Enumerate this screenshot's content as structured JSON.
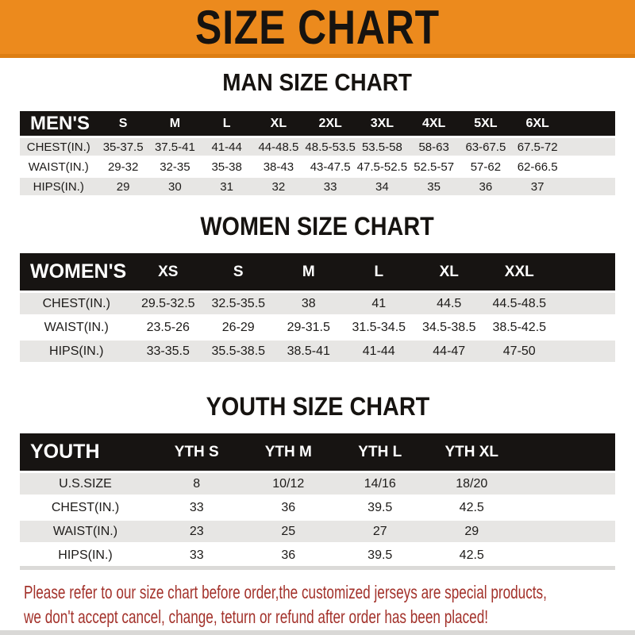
{
  "banner": {
    "title": "SIZE CHART"
  },
  "sections": [
    {
      "id": "men",
      "heading": "MAN SIZE CHART",
      "table": {
        "header_label": "MEN'S",
        "columns": [
          "S",
          "M",
          "L",
          "XL",
          "2XL",
          "3XL",
          "4XL",
          "5XL",
          "6XL"
        ],
        "rows": [
          {
            "label": "CHEST(IN.)",
            "values": [
              "35-37.5",
              "37.5-41",
              "41-44",
              "44-48.5",
              "48.5-53.5",
              "53.5-58",
              "58-63",
              "63-67.5",
              "67.5-72"
            ]
          },
          {
            "label": "WAIST(IN.)",
            "values": [
              "29-32",
              "32-35",
              "35-38",
              "38-43",
              "43-47.5",
              "47.5-52.5",
              "52.5-57",
              "57-62",
              "62-66.5"
            ]
          },
          {
            "label": "HIPS(IN.)",
            "values": [
              "29",
              "30",
              "31",
              "32",
              "33",
              "34",
              "35",
              "36",
              "37"
            ]
          }
        ]
      }
    },
    {
      "id": "women",
      "heading": "WOMEN SIZE CHART",
      "table": {
        "header_label": "WOMEN'S",
        "columns": [
          "XS",
          "S",
          "M",
          "L",
          "XL",
          "XXL"
        ],
        "rows": [
          {
            "label": "CHEST(IN.)",
            "values": [
              "29.5-32.5",
              "32.5-35.5",
              "38",
              "41",
              "44.5",
              "44.5-48.5"
            ]
          },
          {
            "label": "WAIST(IN.)",
            "values": [
              "23.5-26",
              "26-29",
              "29-31.5",
              "31.5-34.5",
              "34.5-38.5",
              "38.5-42.5"
            ]
          },
          {
            "label": "HIPS(IN.)",
            "values": [
              "33-35.5",
              "35.5-38.5",
              "38.5-41",
              "41-44",
              "44-47",
              "47-50"
            ]
          }
        ]
      }
    },
    {
      "id": "youth",
      "heading": "YOUTH SIZE CHART",
      "table": {
        "header_label": "YOUTH",
        "columns": [
          "YTH S",
          "YTH M",
          "YTH L",
          "YTH XL"
        ],
        "rows": [
          {
            "label": "U.S.SIZE",
            "values": [
              "8",
              "10/12",
              "14/16",
              "18/20"
            ]
          },
          {
            "label": "CHEST(IN.)",
            "values": [
              "33",
              "36",
              "39.5",
              "42.5"
            ]
          },
          {
            "label": "WAIST(IN.)",
            "values": [
              "23",
              "25",
              "27",
              "29"
            ]
          },
          {
            "label": "HIPS(IN.)",
            "values": [
              "33",
              "36",
              "39.5",
              "42.5"
            ]
          }
        ]
      }
    }
  ],
  "footer": {
    "line1": "Please refer to our size chart before order,the customized jerseys are special products,",
    "line2": "we don't accept cancel, change, teturn or refund after order has been placed!"
  },
  "colors": {
    "banner_orange": "#EC8A1D",
    "table_header_black": "#171412",
    "row_gray": "#E7E6E4",
    "footer_red": "#A3322B"
  }
}
